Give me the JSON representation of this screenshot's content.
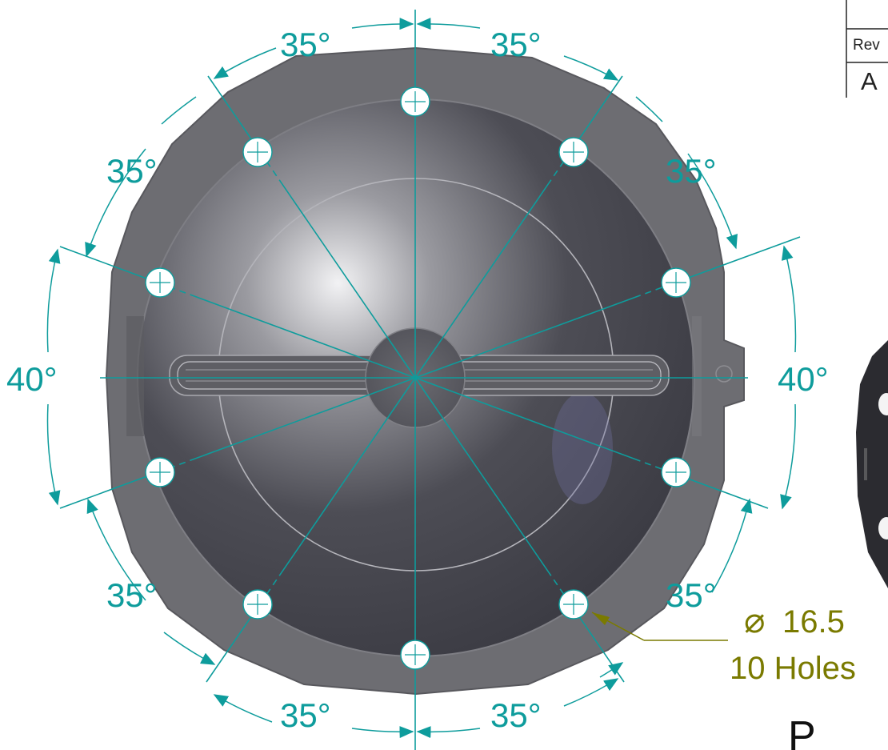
{
  "revision": {
    "header": "Rev",
    "value": "A"
  },
  "angles": {
    "top_left": "35°",
    "top_right": "35°",
    "upper_left": "35°",
    "upper_right": "35°",
    "left": "40°",
    "right": "40°",
    "lower_left": "35°",
    "lower_right": "35°",
    "bottom_left": "35°",
    "bottom_right": "35°"
  },
  "hole_note": {
    "diameter": "16.5",
    "count": "10 Holes"
  },
  "partial_title": "P",
  "colors": {
    "dimension": "#0e9c9c",
    "callout": "#7a7a00",
    "part": "#6c6c70"
  }
}
